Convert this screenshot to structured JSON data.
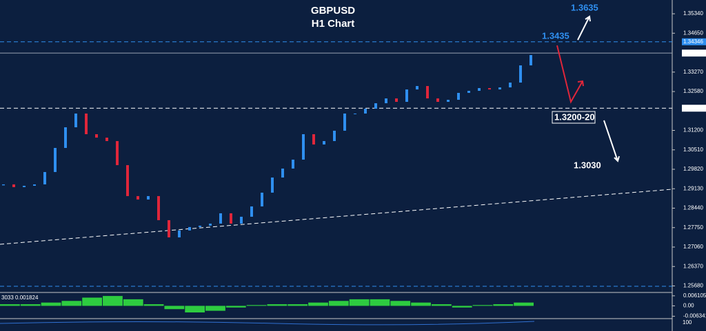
{
  "chart_data": {
    "type": "candlestick",
    "title": "GBPUSD",
    "subtitle": "H1 Chart",
    "annotations": [
      "1.3635",
      "1.3435",
      "1.3200-20",
      "1.3030"
    ],
    "open": [
      1.2925,
      1.29284,
      1.29186,
      1.29235,
      1.29284,
      1.29723,
      1.30578,
      1.31311,
      1.31799,
      1.31066,
      1.30944,
      1.30822,
      1.29968,
      1.28869,
      1.28747,
      1.28869,
      1.28014,
      1.27403,
      1.27648,
      1.2777,
      1.27819,
      1.27892,
      1.28258,
      1.27892,
      1.28136,
      1.28502,
      1.28991,
      1.29528,
      1.29846,
      1.30163,
      1.31066,
      1.307,
      1.30822,
      1.31189,
      1.31799,
      1.31799,
      1.3197,
      1.32165,
      1.32336,
      1.32214,
      1.32654,
      1.32776,
      1.32336,
      1.32214,
      1.32287,
      1.32532,
      1.32605,
      1.32703,
      1.32654,
      1.32727,
      1.32898,
      1.33508
    ],
    "close": [
      1.29284,
      1.29186,
      1.29235,
      1.29284,
      1.29723,
      1.30578,
      1.31311,
      1.31799,
      1.31066,
      1.30944,
      1.30822,
      1.29968,
      1.28869,
      1.28747,
      1.28869,
      1.28014,
      1.27403,
      1.27648,
      1.2777,
      1.27819,
      1.27892,
      1.28258,
      1.27892,
      1.28136,
      1.28502,
      1.28991,
      1.29528,
      1.29846,
      1.30163,
      1.31066,
      1.307,
      1.30822,
      1.31189,
      1.31799,
      1.31799,
      1.3197,
      1.32165,
      1.32336,
      1.32214,
      1.32654,
      1.32776,
      1.32336,
      1.32214,
      1.32287,
      1.32532,
      1.32605,
      1.32703,
      1.32654,
      1.32727,
      1.32898,
      1.33508,
      1.33875
    ],
    "up_color": "#2f8ff0",
    "down_color": "#e0263a",
    "ylim": [
      1.25448,
      1.35829
    ],
    "yticks": [
      {
        "value": 1.3534,
        "label": "1.35340"
      },
      {
        "value": 1.3465,
        "label": "1.34650"
      },
      {
        "value": 1.3327,
        "label": "1.33270"
      },
      {
        "value": 1.3258,
        "label": "1.32580"
      },
      {
        "value": 1.312,
        "label": "1.31200"
      },
      {
        "value": 1.3051,
        "label": "1.30510"
      },
      {
        "value": 1.2982,
        "label": "1.29820"
      },
      {
        "value": 1.2913,
        "label": "1.29130"
      },
      {
        "value": 1.2844,
        "label": "1.28440"
      },
      {
        "value": 1.2775,
        "label": "1.27750"
      },
      {
        "value": 1.2706,
        "label": "1.27060"
      },
      {
        "value": 1.2637,
        "label": "1.26370"
      },
      {
        "value": 1.2568,
        "label": "1.25680"
      }
    ],
    "price_levels": [
      1.34346,
      1.33945,
      1.31988
    ],
    "indicator": {
      "label": "3033 0.001824",
      "color": "#2ecc40",
      "values": [
        0.001,
        0.001,
        0.002,
        0.003,
        0.005,
        0.006,
        0.004,
        0.001,
        -0.002,
        -0.004,
        -0.003,
        -0.001,
        0.0005,
        0.001,
        0.001,
        0.002,
        0.003,
        0.004,
        0.004,
        0.003,
        0.002,
        0.001,
        -0.001,
        0.0005,
        0.001,
        0.002
      ],
      "ylim": [
        -0.00734,
        0.00772
      ],
      "yticks": [
        0.006105,
        {
          "value": 0,
          "label": "0.00"
        },
        -0.006341
      ]
    },
    "oscillator_label": "100"
  }
}
